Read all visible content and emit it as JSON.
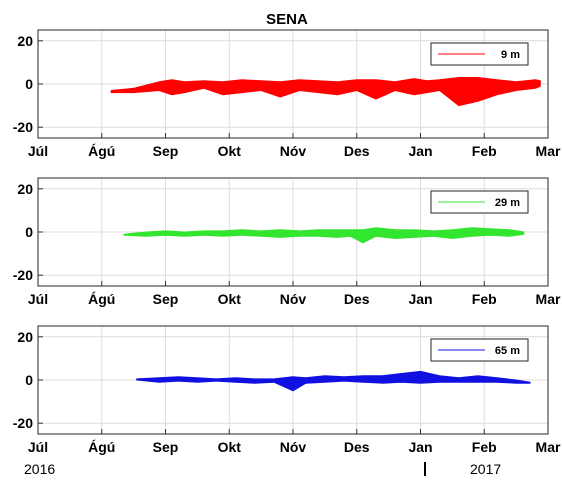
{
  "chart_data": [
    {
      "type": "area",
      "title": "SENA",
      "x_ticks": [
        "Júl",
        "Ágú",
        "Sep",
        "Okt",
        "Nóv",
        "Des",
        "Jan",
        "Feb",
        "Mar"
      ],
      "y_ticks": [
        20,
        0,
        -20
      ],
      "ylim": [
        -25,
        25
      ],
      "grid": true,
      "legend": {
        "placement": "top-right"
      },
      "series": [
        {
          "name": "9 m",
          "color": "#ff0000",
          "x_month": [
            1.15,
            1.5,
            1.9,
            2.1,
            2.3,
            2.6,
            2.9,
            3.2,
            3.5,
            3.8,
            4.1,
            4.4,
            4.7,
            5.0,
            5.3,
            5.6,
            5.9,
            6.1,
            6.3,
            6.6,
            6.9,
            7.2,
            7.5,
            7.8,
            7.88
          ],
          "upper": [
            -3,
            -2,
            1,
            2,
            1,
            1.5,
            1,
            2,
            1.5,
            1,
            2,
            1.5,
            1,
            2,
            2,
            1,
            2.5,
            1.5,
            2,
            3,
            3,
            2,
            1,
            2,
            1.5
          ],
          "lower": [
            -4,
            -4,
            -3,
            -5,
            -4,
            -2,
            -5,
            -4,
            -3,
            -6,
            -3,
            -4,
            -5,
            -3,
            -7,
            -3,
            -5,
            -4,
            -3,
            -10,
            -8,
            -5,
            -3,
            -2,
            -1
          ]
        }
      ]
    },
    {
      "type": "area",
      "title": "",
      "x_ticks": [
        "Júl",
        "Ágú",
        "Sep",
        "Okt",
        "Nóv",
        "Des",
        "Jan",
        "Feb",
        "Mar"
      ],
      "y_ticks": [
        20,
        0,
        -20
      ],
      "ylim": [
        -25,
        25
      ],
      "grid": true,
      "legend": {
        "placement": "top-right"
      },
      "series": [
        {
          "name": "29 m",
          "color": "#33e52e",
          "x_month": [
            1.35,
            1.7,
            2.0,
            2.3,
            2.6,
            2.9,
            3.2,
            3.5,
            3.8,
            4.1,
            4.4,
            4.7,
            4.9,
            5.1,
            5.3,
            5.6,
            5.9,
            6.2,
            6.5,
            6.8,
            7.1,
            7.4,
            7.62
          ],
          "upper": [
            -1,
            0,
            0.5,
            0,
            0.5,
            0.5,
            1,
            0.5,
            1,
            0.5,
            1,
            1,
            1,
            1,
            2,
            1,
            1,
            0.5,
            1,
            2,
            1.5,
            1,
            0
          ],
          "lower": [
            -1.5,
            -2,
            -1.5,
            -2,
            -1.5,
            -2,
            -1.5,
            -2,
            -2.5,
            -2,
            -2,
            -2.5,
            -2,
            -5,
            -2,
            -3,
            -2.5,
            -2,
            -3,
            -2,
            -1.5,
            -2,
            -1
          ]
        }
      ]
    },
    {
      "type": "area",
      "title": "",
      "x_ticks": [
        "Júl",
        "Ágú",
        "Sep",
        "Okt",
        "Nóv",
        "Des",
        "Jan",
        "Feb",
        "Mar"
      ],
      "y_ticks": [
        20,
        0,
        -20
      ],
      "ylim": [
        -25,
        25
      ],
      "grid": true,
      "legend": {
        "placement": "top-right"
      },
      "series": [
        {
          "name": "65 m",
          "color": "#1010e0",
          "x_month": [
            1.55,
            1.9,
            2.2,
            2.5,
            2.8,
            3.1,
            3.4,
            3.7,
            4.0,
            4.2,
            4.5,
            4.8,
            5.1,
            5.4,
            5.7,
            6.0,
            6.3,
            6.6,
            6.9,
            7.2,
            7.5,
            7.72
          ],
          "upper": [
            0.5,
            1,
            1.5,
            1,
            0.5,
            1,
            0.5,
            0.5,
            1.5,
            1,
            2,
            1.5,
            2,
            2,
            3,
            4,
            2,
            1,
            2,
            1,
            0,
            -1
          ],
          "lower": [
            0,
            -1,
            -0.5,
            -1,
            -0.5,
            -1,
            -1.5,
            -1,
            -5,
            -1.5,
            -1,
            -0.5,
            -1,
            -1.5,
            -1,
            -1.5,
            -1,
            -1,
            -1,
            -1,
            -1.5,
            -1.5
          ]
        }
      ]
    }
  ],
  "footer": {
    "year_start": "2016",
    "year_end": "2017"
  }
}
